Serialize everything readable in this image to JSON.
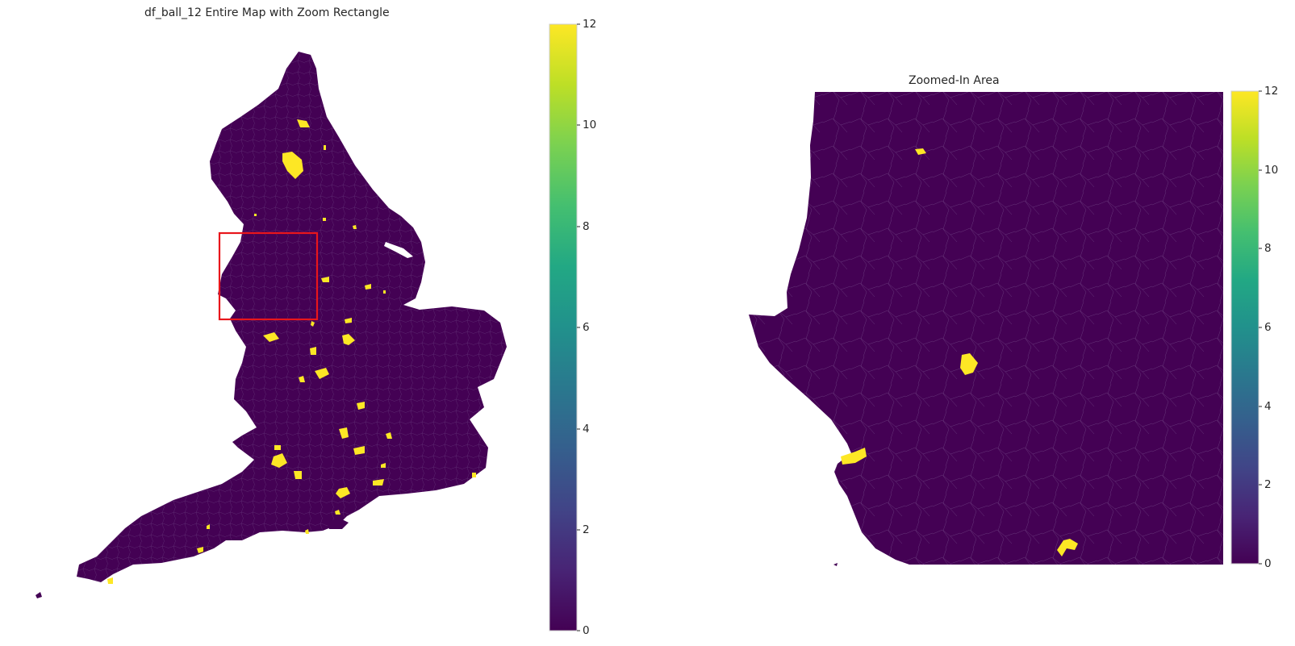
{
  "left_panel": {
    "title": "df_ball_12 Entire Map with Zoom Rectangle",
    "colorbar_ticks": [
      "0",
      "2",
      "4",
      "6",
      "8",
      "10",
      "12"
    ],
    "value_range": [
      0,
      12
    ],
    "colormap": "viridis",
    "low_color": "#440154",
    "high_color": "#fde725",
    "zoom_rect_color": "#e8161b"
  },
  "right_panel": {
    "title": "Zoomed-In Area",
    "colorbar_ticks": [
      "0",
      "2",
      "4",
      "6",
      "8",
      "10",
      "12"
    ],
    "value_range": [
      0,
      12
    ],
    "colormap": "viridis"
  }
}
